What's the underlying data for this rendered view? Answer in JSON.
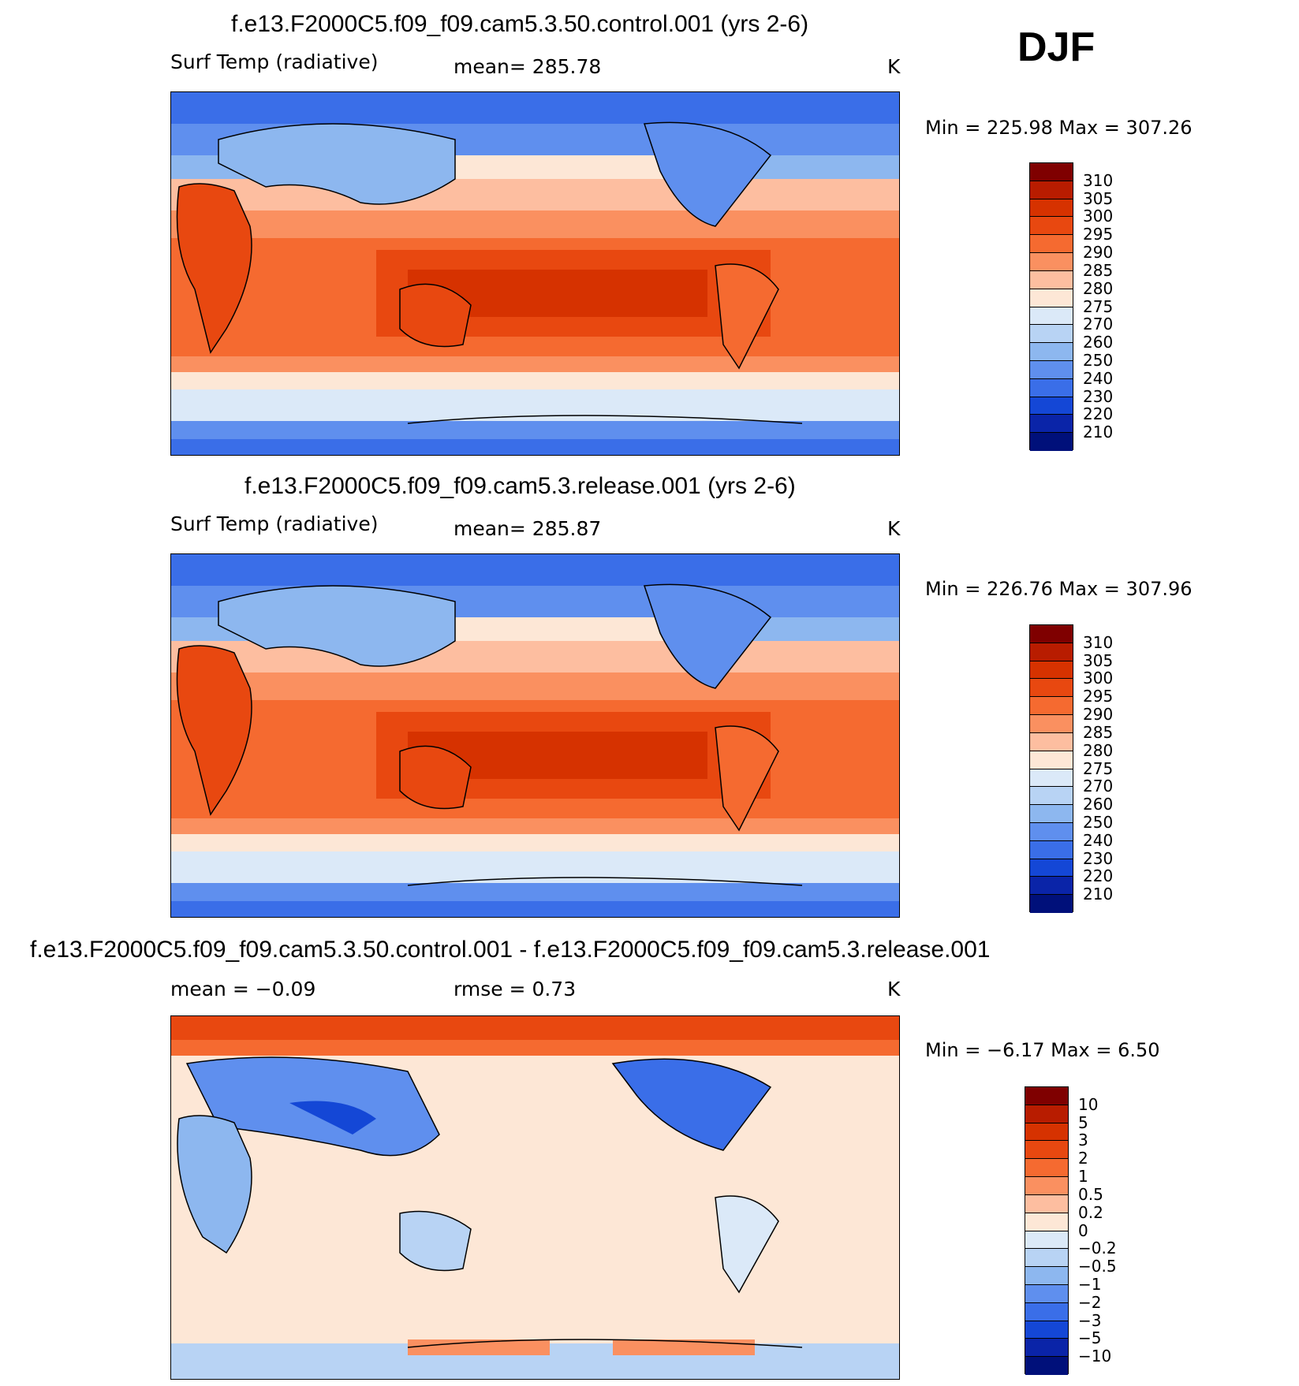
{
  "season": "DJF",
  "panels": [
    {
      "title": "f.e13.F2000C5.f09_f09.cam5.3.50.control.001 (yrs 2-6)",
      "variable": "Surf Temp (radiative)",
      "stat": "mean=  285.78",
      "units": "K",
      "minmax": "Min  =  225.98  Max  =  307.26",
      "colorbar": {
        "labels": [
          "310",
          "305",
          "300",
          "295",
          "290",
          "285",
          "280",
          "275",
          "270",
          "260",
          "250",
          "240",
          "230",
          "220",
          "210"
        ],
        "colors": [
          "#7f0000",
          "#b81c00",
          "#d63200",
          "#e84810",
          "#f56a30",
          "#fa9060",
          "#fdbea0",
          "#fde7d6",
          "#dbe9f8",
          "#b8d3f4",
          "#8db7ef",
          "#5f8fee",
          "#3a6ee8",
          "#1447d6",
          "#0a24a8",
          "#00107a"
        ]
      }
    },
    {
      "title": "f.e13.F2000C5.f09_f09.cam5.3.release.001 (yrs 2-6)",
      "variable": "Surf Temp (radiative)",
      "stat": "mean=  285.87",
      "units": "K",
      "minmax": "Min  =  226.76  Max  =  307.96",
      "colorbar": {
        "labels": [
          "310",
          "305",
          "300",
          "295",
          "290",
          "285",
          "280",
          "275",
          "270",
          "260",
          "250",
          "240",
          "230",
          "220",
          "210"
        ],
        "colors": [
          "#7f0000",
          "#b81c00",
          "#d63200",
          "#e84810",
          "#f56a30",
          "#fa9060",
          "#fdbea0",
          "#fde7d6",
          "#dbe9f8",
          "#b8d3f4",
          "#8db7ef",
          "#5f8fee",
          "#3a6ee8",
          "#1447d6",
          "#0a24a8",
          "#00107a"
        ]
      }
    },
    {
      "title": "f.e13.F2000C5.f09_f09.cam5.3.50.control.001 - f.e13.F2000C5.f09_f09.cam5.3.release.001",
      "stat": "mean =    −0.09",
      "stat2": "rmse =     0.73",
      "units": "K",
      "minmax": "Min  =    −6.17  Max  =     6.50",
      "colorbar": {
        "labels": [
          "10",
          "5",
          "3",
          "2",
          "1",
          "0.5",
          "0.2",
          "0",
          "−0.2",
          "−0.5",
          "−1",
          "−2",
          "−3",
          "−5",
          "−10"
        ],
        "colors": [
          "#7f0000",
          "#b81c00",
          "#d63200",
          "#e84810",
          "#f56a30",
          "#fa9060",
          "#fdbea0",
          "#fde7d6",
          "#dbe9f8",
          "#b8d3f4",
          "#8db7ef",
          "#5f8fee",
          "#3a6ee8",
          "#1447d6",
          "#0a24a8",
          "#00107a"
        ]
      }
    }
  ]
}
